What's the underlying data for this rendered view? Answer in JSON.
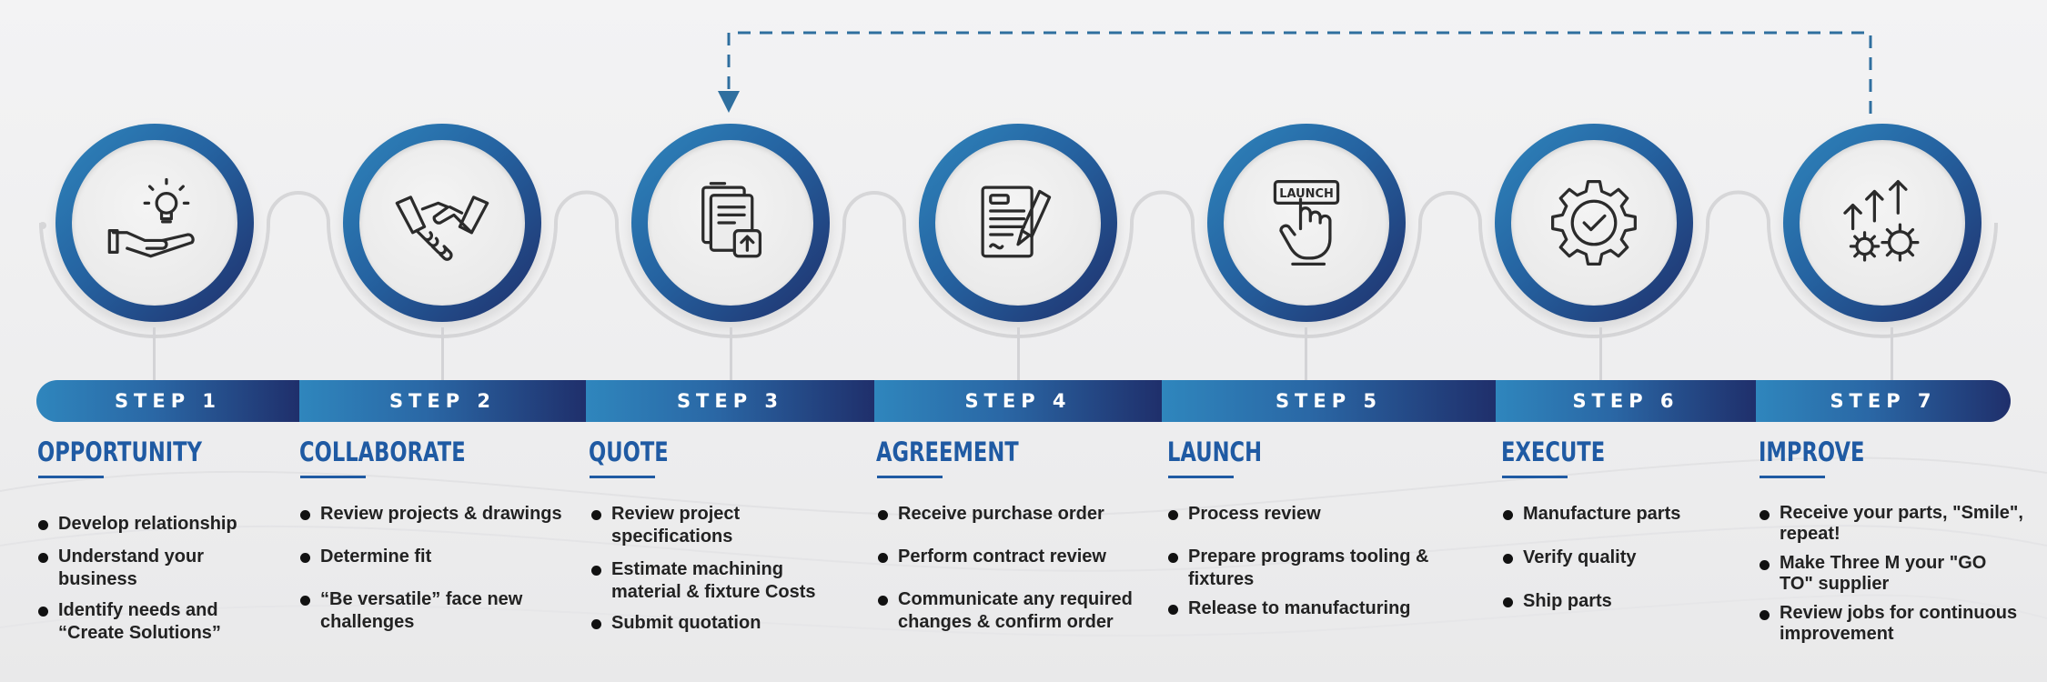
{
  "colors": {
    "accent_light": "#2f86bd",
    "accent_dark": "#1f2f6b",
    "title_blue": "#1f5aa3",
    "arrow_blue": "#2f6f9f"
  },
  "steps": [
    {
      "label": "STEP 1",
      "title": "OPPORTUNITY",
      "icon": "lightbulb-hand-icon",
      "bullets": [
        "Develop relationship",
        "Understand your business",
        "Identify needs and “Create Solutions”"
      ]
    },
    {
      "label": "STEP 2",
      "title": "COLLABORATE",
      "icon": "handshake-icon",
      "bullets": [
        "Review projects & drawings",
        "Determine fit",
        "“Be versatile” face new challenges"
      ]
    },
    {
      "label": "STEP 3",
      "title": "QUOTE",
      "icon": "document-upload-icon",
      "bullets": [
        "Review project specifications",
        "Estimate machining material & fixture Costs",
        "Submit quotation"
      ]
    },
    {
      "label": "STEP 4",
      "title": "AGREEMENT",
      "icon": "contract-pen-icon",
      "bullets": [
        "Receive purchase order",
        "Perform contract review",
        "Communicate any required changes & confirm order"
      ]
    },
    {
      "label": "STEP 5",
      "title": "LAUNCH",
      "icon": "launch-button-icon",
      "icon_text": "LAUNCH",
      "bullets": [
        "Process review",
        "Prepare programs tooling & fixtures",
        "Release to manufacturing"
      ]
    },
    {
      "label": "STEP 6",
      "title": "EXECUTE",
      "icon": "gear-check-icon",
      "bullets": [
        "Manufacture parts",
        "Verify quality",
        "Ship parts"
      ]
    },
    {
      "label": "STEP 7",
      "title": "IMPROVE",
      "icon": "gears-arrows-up-icon",
      "bullets": [
        "Receive your parts, \"Smile\", repeat!",
        "Make Three M your \"GO TO\" supplier",
        "Review jobs for continuous improvement"
      ]
    }
  ],
  "feedback_loop": {
    "from_step": 7,
    "to_step": 3,
    "style": "dashed"
  }
}
